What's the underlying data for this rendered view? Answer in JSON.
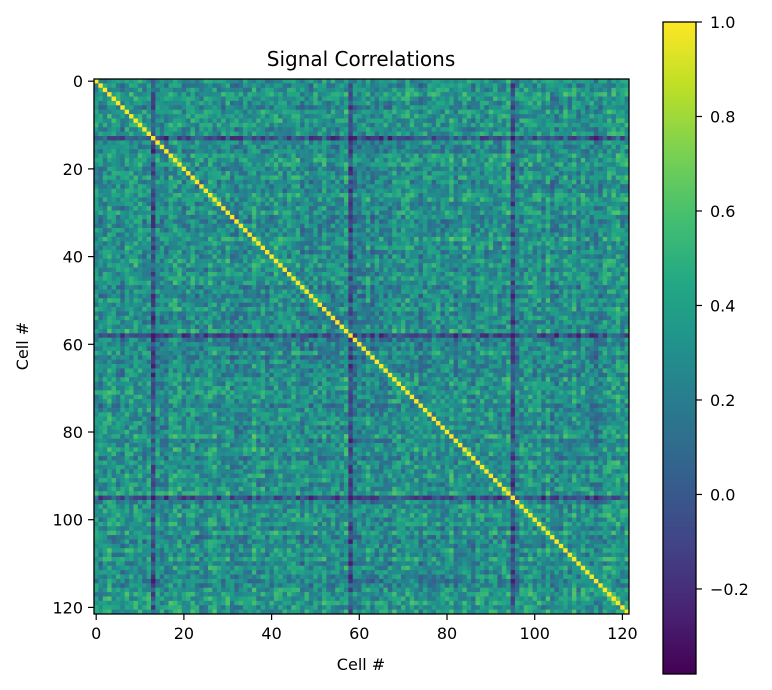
{
  "chart_data": {
    "type": "heatmap",
    "title": "Signal Correlations",
    "xlabel": "Cell #",
    "ylabel": "Cell #",
    "n_cells": 122,
    "x_ticks": [
      0,
      20,
      40,
      60,
      80,
      100,
      120
    ],
    "y_ticks": [
      0,
      20,
      40,
      60,
      80,
      100,
      120
    ],
    "x_tick_labels": [
      "0",
      "20",
      "40",
      "60",
      "80",
      "100",
      "120"
    ],
    "y_tick_labels": [
      "0",
      "20",
      "40",
      "60",
      "80",
      "100",
      "120"
    ],
    "colormap": "viridis",
    "vmin": -0.38,
    "vmax": 1.0,
    "diagonal_value": 1.0,
    "typical_offdiagonal_range": [
      0.0,
      0.6
    ],
    "typical_offdiagonal_mean": 0.3,
    "low_correlation_cells": [
      13,
      58,
      95
    ],
    "colorbar_ticks": [
      1.0,
      0.8,
      0.6,
      0.4,
      0.2,
      0.0,
      -0.2
    ],
    "colorbar_tick_labels": [
      "1.0",
      "0.8",
      "0.6",
      "0.4",
      "0.2",
      "0.0",
      "−0.2"
    ],
    "grid": false,
    "colorbar_position": "right"
  }
}
